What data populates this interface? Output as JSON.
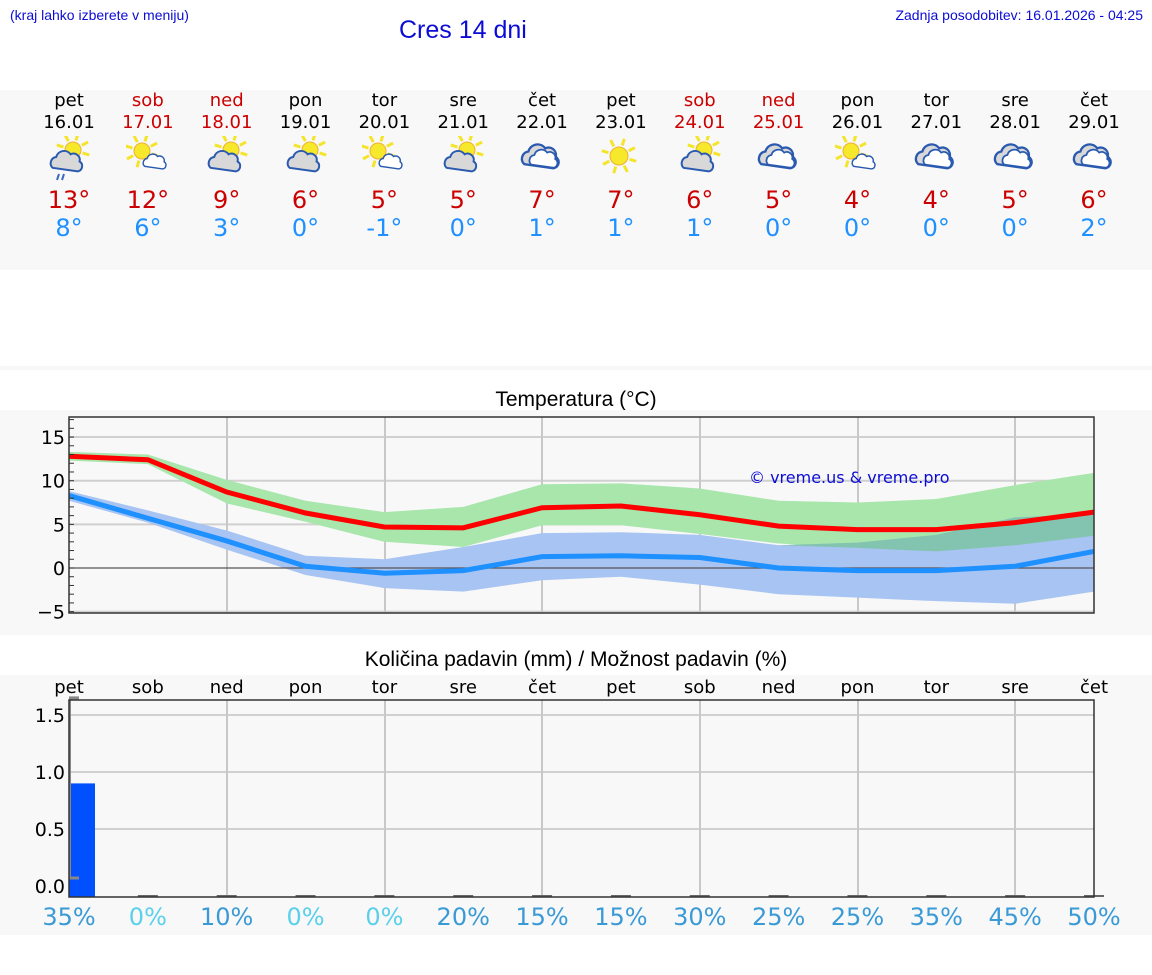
{
  "header": {
    "hint": "(kraj lahko izberete v meniju)",
    "title": "Cres 14 dni",
    "updated": "Zadnja posodobitev: 16.01.2026 - 04:25"
  },
  "days": [
    {
      "name": "pet",
      "date": "16.01",
      "icon": "partly-cloudy-rain-icon",
      "max": "13°",
      "min": "8°",
      "weekend": false
    },
    {
      "name": "sob",
      "date": "17.01",
      "icon": "sunny-small-cloud-icon",
      "max": "12°",
      "min": "6°",
      "weekend": true
    },
    {
      "name": "ned",
      "date": "18.01",
      "icon": "partly-cloudy-icon",
      "max": "9°",
      "min": "3°",
      "weekend": true
    },
    {
      "name": "pon",
      "date": "19.01",
      "icon": "partly-cloudy-icon",
      "max": "6°",
      "min": "0°",
      "weekend": false
    },
    {
      "name": "tor",
      "date": "20.01",
      "icon": "sunny-small-cloud-icon",
      "max": "5°",
      "min": "-1°",
      "weekend": false
    },
    {
      "name": "sre",
      "date": "21.01",
      "icon": "partly-cloudy-icon",
      "max": "5°",
      "min": "0°",
      "weekend": false
    },
    {
      "name": "čet",
      "date": "22.01",
      "icon": "cloudy-icon",
      "max": "7°",
      "min": "1°",
      "weekend": false
    },
    {
      "name": "pet",
      "date": "23.01",
      "icon": "sunny-icon",
      "max": "7°",
      "min": "1°",
      "weekend": false
    },
    {
      "name": "sob",
      "date": "24.01",
      "icon": "partly-cloudy-icon",
      "max": "6°",
      "min": "1°",
      "weekend": true
    },
    {
      "name": "ned",
      "date": "25.01",
      "icon": "cloudy-icon",
      "max": "5°",
      "min": "0°",
      "weekend": true
    },
    {
      "name": "pon",
      "date": "26.01",
      "icon": "sunny-small-cloud-icon",
      "max": "4°",
      "min": "0°",
      "weekend": false
    },
    {
      "name": "tor",
      "date": "27.01",
      "icon": "cloudy-icon",
      "max": "4°",
      "min": "0°",
      "weekend": false
    },
    {
      "name": "sre",
      "date": "28.01",
      "icon": "cloudy-icon",
      "max": "5°",
      "min": "0°",
      "weekend": false
    },
    {
      "name": "čet",
      "date": "29.01",
      "icon": "cloudy-icon",
      "max": "6°",
      "min": "2°",
      "weekend": false
    }
  ],
  "colors": {
    "max_line": "#ff0000",
    "min_line": "#1e90ff",
    "max_band": "#a8e6ac",
    "min_band": "#a8c4f2",
    "overlap_band": "#7cc4a4",
    "max_text": "#cc0000",
    "min_text": "#1e90ff",
    "precip_bar": "#0050ff",
    "title_blue": "#0b0bd6"
  },
  "temp_chart": {
    "title": "Temperatura (°C)",
    "watermark": "© vreme.us & vreme.pro",
    "yticks": [
      "15",
      "10",
      "5",
      "0",
      "−5"
    ]
  },
  "precip_chart": {
    "title": "Količina padavin (mm) / Možnost padavin (%)",
    "yticks": [
      "1.5",
      "1.0",
      "0.5",
      "0.0"
    ],
    "day_labels": [
      "pet",
      "sob",
      "ned",
      "pon",
      "tor",
      "sre",
      "čet",
      "pet",
      "sob",
      "ned",
      "pon",
      "tor",
      "sre",
      "čet"
    ],
    "chances": [
      "35%",
      "0%",
      "10%",
      "0%",
      "0%",
      "20%",
      "15%",
      "15%",
      "30%",
      "25%",
      "25%",
      "35%",
      "45%",
      "50%"
    ]
  },
  "chart_data": [
    {
      "type": "line",
      "title": "Temperatura (°C)",
      "xlabel": "",
      "ylabel": "°C",
      "categories": [
        "16.01",
        "17.01",
        "18.01",
        "19.01",
        "20.01",
        "21.01",
        "22.01",
        "23.01",
        "24.01",
        "25.01",
        "26.01",
        "27.01",
        "28.01",
        "29.01"
      ],
      "ylim": [
        -5.5,
        17.5
      ],
      "grid": true,
      "series": [
        {
          "name": "max",
          "values": [
            12.8,
            12.4,
            8.7,
            6.3,
            4.7,
            4.6,
            6.9,
            7.1,
            6.1,
            4.8,
            4.4,
            4.4,
            5.2,
            6.4
          ],
          "band_low": [
            12.3,
            11.9,
            7.4,
            5.3,
            3.0,
            2.4,
            4.9,
            4.9,
            3.9,
            2.8,
            2.3,
            1.9,
            2.6,
            3.7
          ],
          "band_high": [
            13.3,
            13.0,
            10.1,
            7.7,
            6.4,
            7.0,
            9.6,
            9.7,
            9.1,
            7.7,
            7.5,
            7.9,
            9.5,
            10.9
          ]
        },
        {
          "name": "min",
          "values": [
            8.3,
            5.7,
            3.1,
            0.2,
            -0.6,
            -0.3,
            1.3,
            1.4,
            1.2,
            0.0,
            -0.3,
            -0.3,
            0.2,
            1.9
          ],
          "band_low": [
            7.7,
            5.2,
            2.1,
            -0.8,
            -2.3,
            -2.7,
            -1.4,
            -1.0,
            -1.9,
            -3.0,
            -3.4,
            -3.8,
            -4.1,
            -2.7
          ],
          "band_high": [
            8.8,
            6.6,
            4.3,
            1.4,
            1.0,
            2.4,
            4.0,
            4.1,
            3.8,
            2.6,
            2.9,
            3.8,
            5.8,
            6.2
          ]
        }
      ],
      "legend": "none"
    },
    {
      "type": "bar",
      "title": "Količina padavin (mm) / Možnost padavin (%)",
      "categories": [
        "pet",
        "sob",
        "ned",
        "pon",
        "tor",
        "sre",
        "čet",
        "pet",
        "sob",
        "ned",
        "pon",
        "tor",
        "sre",
        "čet"
      ],
      "series": [
        {
          "name": "Količina padavin (mm)",
          "values": [
            0.9,
            0,
            0,
            0,
            0,
            0,
            0,
            0,
            0,
            0,
            0,
            0,
            0,
            0
          ]
        },
        {
          "name": "Možnost padavin (%)",
          "values": [
            35,
            0,
            10,
            0,
            0,
            20,
            15,
            15,
            30,
            25,
            25,
            35,
            45,
            50
          ]
        }
      ],
      "ylim": [
        -0.1,
        1.75
      ],
      "grid": true
    }
  ]
}
